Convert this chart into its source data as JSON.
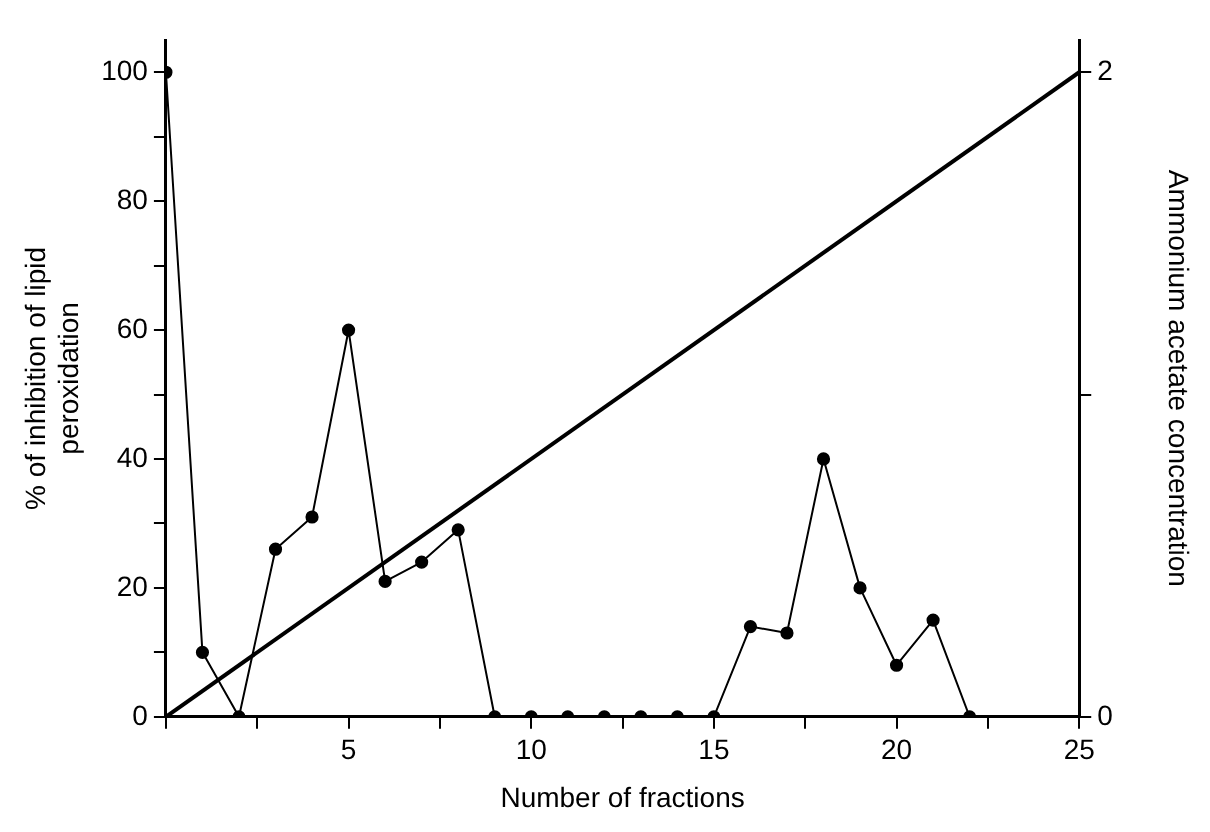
{
  "chart_data": {
    "type": "line",
    "xlabel": "Number of fractions",
    "ylabel": "% of inhibition of lipid peroxidation",
    "y2label": "Ammonium acetate concentration",
    "x": [
      0,
      1,
      2,
      3,
      4,
      5,
      6,
      7,
      8,
      9,
      10,
      11,
      12,
      13,
      14,
      15,
      16,
      17,
      18,
      19,
      20,
      21,
      22
    ],
    "series": [
      {
        "color": "#000000",
        "marker": "circle",
        "values": [
          100,
          10,
          0,
          26,
          31,
          60,
          21,
          24,
          29,
          0,
          0,
          0,
          0,
          0,
          0,
          0,
          14,
          13,
          40,
          20,
          8,
          15,
          0
        ]
      },
      {
        "color": "#000000",
        "marker": "none",
        "axis": "y2",
        "x": [
          0,
          25
        ],
        "values": [
          0,
          2
        ]
      }
    ],
    "xlim": [
      0,
      25
    ],
    "xticks": [
      {
        "value": 0,
        "label": null
      },
      {
        "value": 2.5,
        "label": null
      },
      5,
      {
        "value": 7.5,
        "label": null
      },
      10,
      {
        "value": 12.5,
        "label": null
      },
      15,
      {
        "value": 17.5,
        "label": null
      },
      20,
      {
        "value": 22.5,
        "label": null
      },
      25
    ],
    "ylim": [
      0,
      105
    ],
    "yticks": [
      0,
      {
        "value": 10,
        "label": null
      },
      20,
      {
        "value": 30,
        "label": null
      },
      40,
      {
        "value": 50,
        "label": null
      },
      60,
      {
        "value": 70,
        "label": null
      },
      80,
      {
        "value": 90,
        "label": null
      },
      100
    ],
    "y2lim": [
      0,
      2.1
    ],
    "y2ticks": [
      0,
      {
        "value": 1,
        "label": null
      },
      2
    ],
    "grid": false,
    "legend": false
  }
}
